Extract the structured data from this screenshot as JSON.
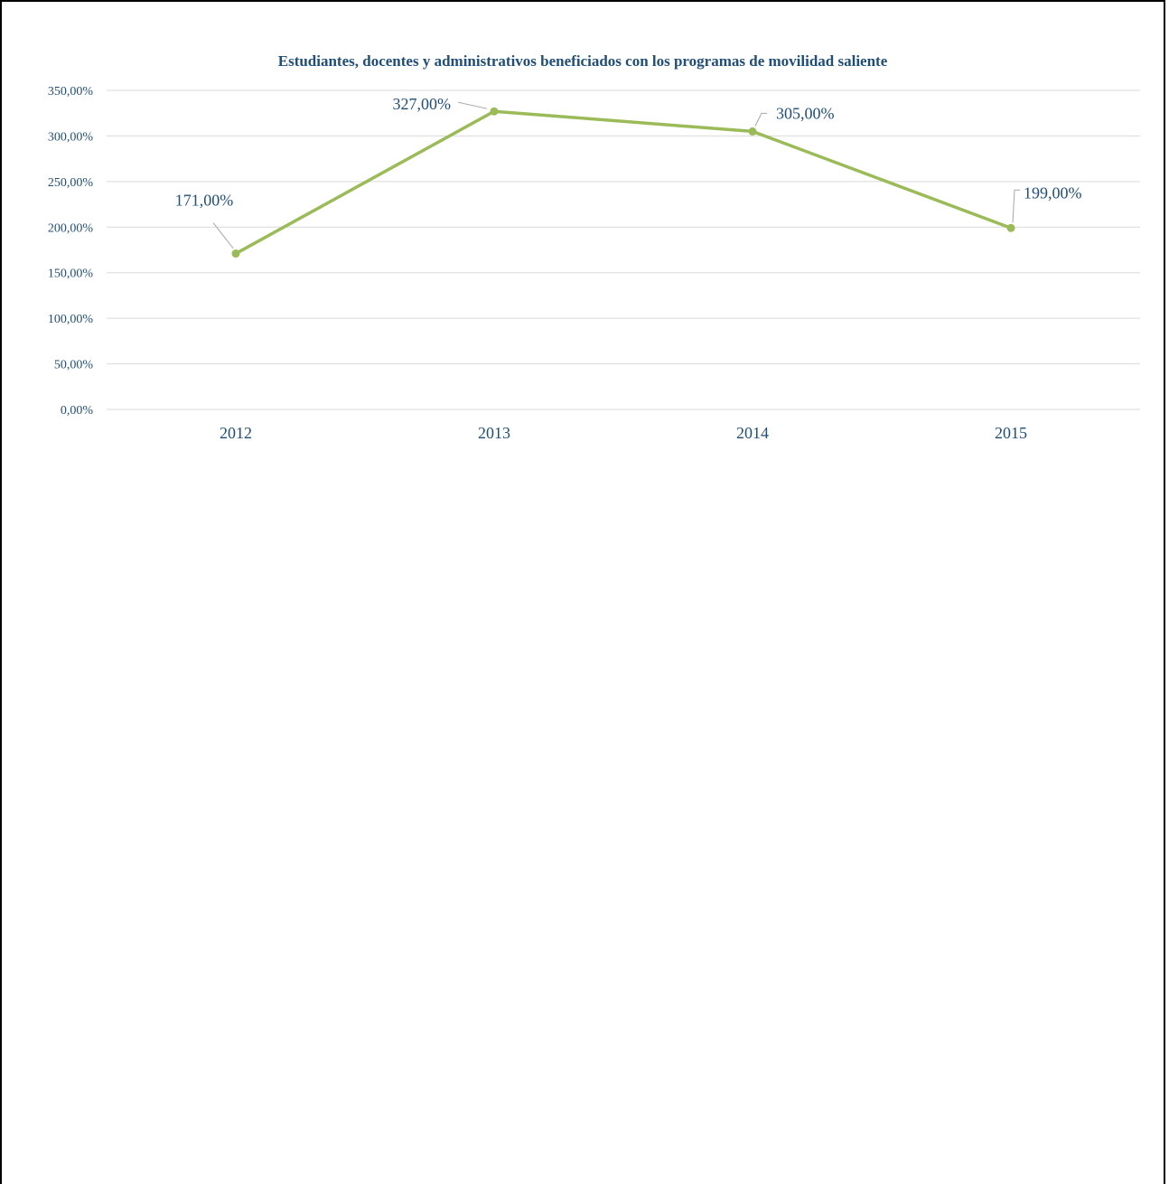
{
  "chart_data": {
    "type": "line",
    "title": "Estudiantes, docentes y administrativos beneficiados con los programas de movilidad saliente",
    "categories": [
      "2012",
      "2013",
      "2014",
      "2015"
    ],
    "series": [
      {
        "values": [
          171,
          327,
          305,
          199
        ],
        "labels": [
          "171,00%",
          "327,00%",
          "305,00%",
          "199,00%"
        ],
        "color": "#9bbb59"
      }
    ],
    "ylim": [
      0,
      350
    ],
    "yticks": [
      0,
      50,
      100,
      150,
      200,
      250,
      300,
      350
    ],
    "ytick_labels": [
      "0,00%",
      "50,00%",
      "100,00%",
      "150,00%",
      "200,00%",
      "250,00%",
      "300,00%",
      "350,00%"
    ],
    "grid": true,
    "gridline_color": "#d9d9d9",
    "text_color": "#1f4e79"
  }
}
